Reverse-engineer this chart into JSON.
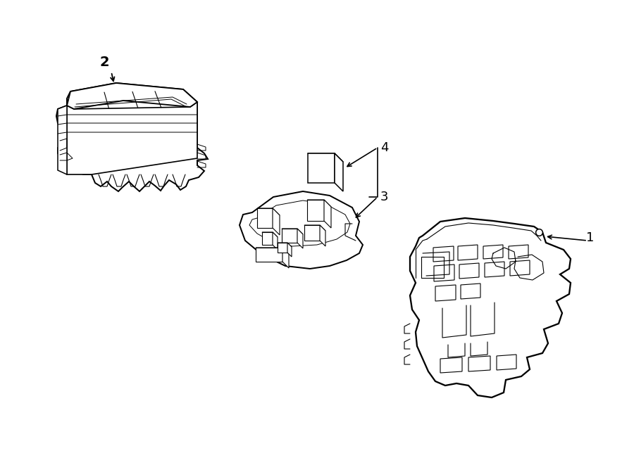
{
  "bg": "#ffffff",
  "lc": "#000000",
  "lw": 1.1,
  "label_fs": 13
}
